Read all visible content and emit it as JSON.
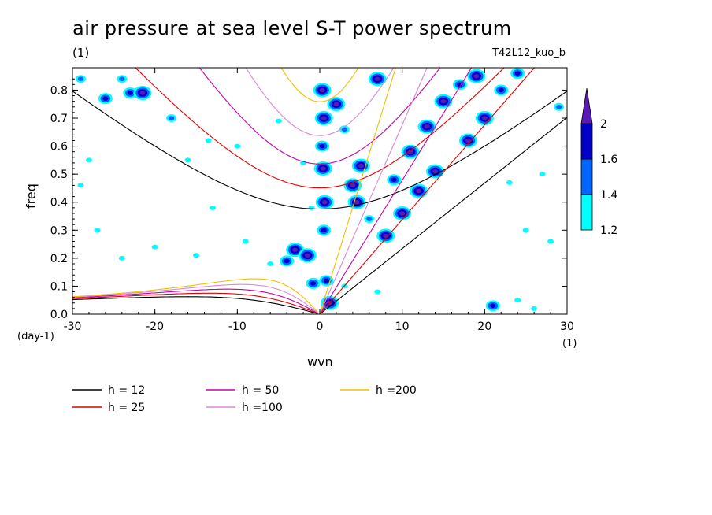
{
  "chart_data": {
    "type": "heatmap",
    "title": "air pressure at sea level S-T power spectrum",
    "subtitle": "(1)",
    "run_label": "T42L12_kuo_b",
    "xlabel": "wvn",
    "ylabel": "freq",
    "x_unit": "(1)",
    "y_unit": "(day-1)",
    "xlim": [
      -30,
      30
    ],
    "ylim": [
      0,
      0.88
    ],
    "x_ticks": [
      "-30",
      "-20",
      "-10",
      "0",
      "10",
      "20",
      "30"
    ],
    "y_ticks": [
      "0.0",
      "0.1",
      "0.2",
      "0.3",
      "0.4",
      "0.5",
      "0.6",
      "0.7",
      "0.8"
    ],
    "colorbar": {
      "levels": [
        "1.2",
        "1.4",
        "1.6",
        "2"
      ],
      "colors": [
        "#00ffff",
        "#0066ff",
        "#0000c8",
        "#5a1ab4"
      ]
    },
    "dispersion_curves": [
      {
        "label": "h = 12",
        "h": 12,
        "color": "#000000"
      },
      {
        "label": "h = 25",
        "h": 25,
        "color": "#e00000"
      },
      {
        "label": "h = 50",
        "h": 50,
        "color": "#c800a8"
      },
      {
        "label": "h =100",
        "h": 100,
        "color": "#d88ad8"
      },
      {
        "label": "h =200",
        "h": 200,
        "color": "#f0c000"
      }
    ],
    "spectral_blobs": [
      {
        "x": -29,
        "y": 0.84,
        "level": 1
      },
      {
        "x": -24,
        "y": 0.84,
        "level": 1
      },
      {
        "x": -26,
        "y": 0.77,
        "level": 2
      },
      {
        "x": -23,
        "y": 0.79,
        "level": 2
      },
      {
        "x": -21.5,
        "y": 0.79,
        "level": 3
      },
      {
        "x": -18,
        "y": 0.7,
        "level": 1
      },
      {
        "x": -28,
        "y": 0.55,
        "level": 0
      },
      {
        "x": -29,
        "y": 0.46,
        "level": 0
      },
      {
        "x": -16,
        "y": 0.55,
        "level": 0
      },
      {
        "x": -13.5,
        "y": 0.62,
        "level": 0
      },
      {
        "x": -10,
        "y": 0.6,
        "level": 0
      },
      {
        "x": -13,
        "y": 0.38,
        "level": 0
      },
      {
        "x": -15,
        "y": 0.21,
        "level": 0
      },
      {
        "x": -9,
        "y": 0.26,
        "level": 0
      },
      {
        "x": -5,
        "y": 0.69,
        "level": 0
      },
      {
        "x": -2,
        "y": 0.54,
        "level": 0
      },
      {
        "x": -24,
        "y": 0.2,
        "level": 0
      },
      {
        "x": -27,
        "y": 0.3,
        "level": 0
      },
      {
        "x": -20,
        "y": 0.24,
        "level": 0
      },
      {
        "x": -6,
        "y": 0.18,
        "level": 0
      },
      {
        "x": -3,
        "y": 0.23,
        "level": 3
      },
      {
        "x": -1.5,
        "y": 0.21,
        "level": 3
      },
      {
        "x": -4,
        "y": 0.19,
        "level": 2
      },
      {
        "x": -0.8,
        "y": 0.11,
        "level": 2
      },
      {
        "x": 0.3,
        "y": 0.8,
        "level": 3
      },
      {
        "x": 0.5,
        "y": 0.7,
        "level": 3
      },
      {
        "x": 0.3,
        "y": 0.6,
        "level": 2
      },
      {
        "x": 0.4,
        "y": 0.52,
        "level": 3
      },
      {
        "x": 0.6,
        "y": 0.4,
        "level": 3
      },
      {
        "x": 0.5,
        "y": 0.3,
        "level": 2
      },
      {
        "x": 0.8,
        "y": 0.12,
        "level": 2
      },
      {
        "x": 1.2,
        "y": 0.04,
        "level": 3
      },
      {
        "x": 2,
        "y": 0.75,
        "level": 3
      },
      {
        "x": 3,
        "y": 0.66,
        "level": 1
      },
      {
        "x": 4,
        "y": 0.46,
        "level": 3
      },
      {
        "x": 4.5,
        "y": 0.4,
        "level": 3
      },
      {
        "x": 5,
        "y": 0.53,
        "level": 3
      },
      {
        "x": 6,
        "y": 0.34,
        "level": 1
      },
      {
        "x": 7,
        "y": 0.84,
        "level": 3
      },
      {
        "x": 3,
        "y": 0.1,
        "level": 0
      },
      {
        "x": 8,
        "y": 0.28,
        "level": 3
      },
      {
        "x": 10,
        "y": 0.36,
        "level": 3
      },
      {
        "x": 12,
        "y": 0.44,
        "level": 3
      },
      {
        "x": 14,
        "y": 0.51,
        "level": 3
      },
      {
        "x": 9,
        "y": 0.48,
        "level": 2
      },
      {
        "x": 11,
        "y": 0.58,
        "level": 3
      },
      {
        "x": 13,
        "y": 0.67,
        "level": 3
      },
      {
        "x": 15,
        "y": 0.76,
        "level": 3
      },
      {
        "x": 17,
        "y": 0.82,
        "level": 2
      },
      {
        "x": 18,
        "y": 0.62,
        "level": 3
      },
      {
        "x": 20,
        "y": 0.7,
        "level": 3
      },
      {
        "x": 19,
        "y": 0.85,
        "level": 3
      },
      {
        "x": 22,
        "y": 0.8,
        "level": 2
      },
      {
        "x": 24,
        "y": 0.86,
        "level": 2
      },
      {
        "x": 23,
        "y": 0.47,
        "level": 0
      },
      {
        "x": 27,
        "y": 0.5,
        "level": 0
      },
      {
        "x": 25,
        "y": 0.3,
        "level": 0
      },
      {
        "x": 28,
        "y": 0.26,
        "level": 0
      },
      {
        "x": 21,
        "y": 0.03,
        "level": 2
      },
      {
        "x": 24,
        "y": 0.05,
        "level": 0
      },
      {
        "x": 26,
        "y": 0.02,
        "level": 0
      },
      {
        "x": 29,
        "y": 0.74,
        "level": 1
      },
      {
        "x": -1,
        "y": 0.38,
        "level": 0
      },
      {
        "x": 7,
        "y": 0.08,
        "level": 0
      }
    ]
  }
}
